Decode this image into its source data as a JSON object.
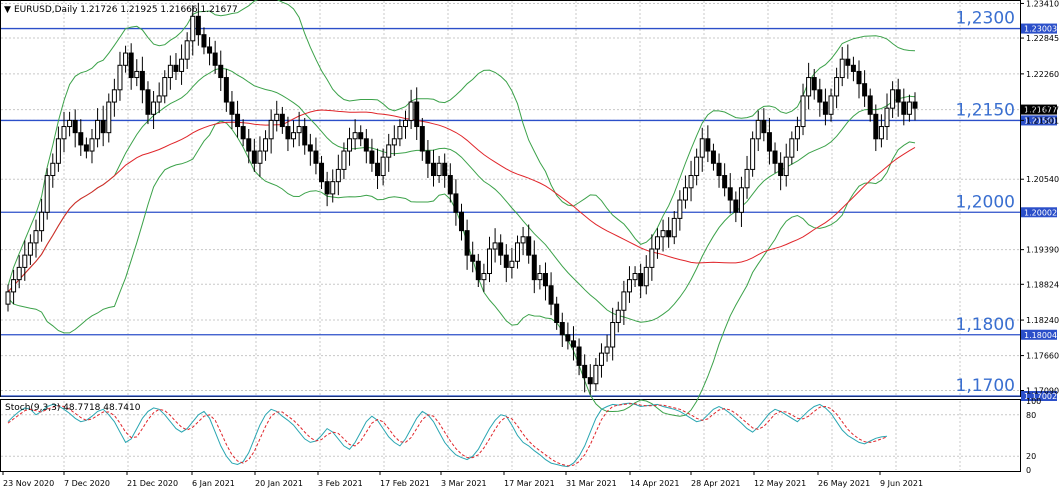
{
  "chart_data": {
    "type": "candlestick",
    "title": "EURUSD,Daily  1.21726 1.21925 1.21666 1.21677",
    "symbol": "EURUSD,Daily",
    "ohlc_header": "1.21726 1.21925 1.21666 1.21677",
    "ylim": [
      1.17,
      1.2345
    ],
    "y_ticks": [
      "1.23410",
      "1.22845",
      "1.22260",
      "1.21677",
      "1.21501",
      "1.20540",
      "1.19390",
      "1.18824",
      "1.18240",
      "1.17660",
      "1.17090"
    ],
    "x_ticks": [
      "23 Nov 2020",
      "7 Dec 2020",
      "21 Dec 2020",
      "6 Jan 2021",
      "20 Jan 2021",
      "3 Feb 2021",
      "17 Feb 2021",
      "3 Mar 2021",
      "17 Mar 2021",
      "31 Mar 2021",
      "14 Apr 2021",
      "28 Apr 2021",
      "12 May 2021",
      "26 May 2021",
      "9 Jun 2021"
    ],
    "horizontal_levels": [
      {
        "value": 1.23,
        "label": "1,2300",
        "box": "1.23003"
      },
      {
        "value": 1.215,
        "label": "1,2150",
        "box": "1.21501"
      },
      {
        "value": 1.2,
        "label": "1,2000",
        "box": "1.20002"
      },
      {
        "value": 1.18,
        "label": "1,1800",
        "box": "1.18004"
      },
      {
        "value": 1.17,
        "label": "1,1700",
        "box": "1.17002"
      }
    ],
    "current_price": "1.21677",
    "close_series": [
      1.187,
      1.189,
      1.191,
      1.193,
      1.195,
      1.197,
      1.2,
      1.206,
      1.208,
      1.212,
      1.214,
      1.215,
      1.213,
      1.211,
      1.21,
      1.212,
      1.215,
      1.213,
      1.218,
      1.22,
      1.224,
      1.226,
      1.222,
      1.223,
      1.22,
      1.216,
      1.218,
      1.219,
      1.222,
      1.224,
      1.223,
      1.225,
      1.228,
      1.232,
      1.229,
      1.227,
      1.226,
      1.224,
      1.222,
      1.218,
      1.216,
      1.214,
      1.212,
      1.21,
      1.208,
      1.21,
      1.212,
      1.215,
      1.216,
      1.214,
      1.212,
      1.213,
      1.214,
      1.211,
      1.21,
      1.208,
      1.205,
      1.203,
      1.205,
      1.207,
      1.21,
      1.212,
      1.213,
      1.212,
      1.21,
      1.208,
      1.206,
      1.209,
      1.211,
      1.212,
      1.214,
      1.215,
      1.218,
      1.214,
      1.21,
      1.208,
      1.206,
      1.208,
      1.206,
      1.203,
      1.2,
      1.197,
      1.193,
      1.192,
      1.189,
      1.19,
      1.194,
      1.195,
      1.193,
      1.191,
      1.192,
      1.195,
      1.196,
      1.193,
      1.189,
      1.19,
      1.188,
      1.185,
      1.182,
      1.18,
      1.179,
      1.178,
      1.175,
      1.173,
      1.172,
      1.175,
      1.177,
      1.178,
      1.182,
      1.184,
      1.187,
      1.189,
      1.19,
      1.188,
      1.191,
      1.194,
      1.196,
      1.197,
      1.196,
      1.199,
      1.202,
      1.204,
      1.206,
      1.209,
      1.212,
      1.21,
      1.208,
      1.206,
      1.204,
      1.202,
      1.2,
      1.204,
      1.207,
      1.212,
      1.215,
      1.213,
      1.21,
      1.208,
      1.206,
      1.209,
      1.212,
      1.214,
      1.219,
      1.222,
      1.22,
      1.218,
      1.216,
      1.219,
      1.222,
      1.225,
      1.224,
      1.223,
      1.221,
      1.219,
      1.216,
      1.212,
      1.214,
      1.217,
      1.22,
      1.218,
      1.216,
      1.218,
      1.217
    ],
    "ma_slow_label": "red moving average",
    "stochastic": {
      "title": "Stoch(9,3,3) 48.7718 48.7410",
      "y_ticks": [
        "100",
        "80",
        "20",
        "0"
      ],
      "k_series": [
        70,
        78,
        85,
        90,
        88,
        80,
        85,
        92,
        95,
        93,
        88,
        82,
        75,
        70,
        72,
        78,
        85,
        88,
        80,
        70,
        55,
        40,
        45,
        60,
        75,
        85,
        90,
        88,
        80,
        70,
        60,
        55,
        60,
        70,
        80,
        85,
        75,
        55,
        35,
        20,
        10,
        8,
        12,
        25,
        45,
        65,
        80,
        88,
        85,
        78,
        72,
        65,
        55,
        45,
        40,
        42,
        50,
        60,
        55,
        45,
        35,
        30,
        40,
        55,
        70,
        78,
        72,
        60,
        48,
        40,
        35,
        45,
        60,
        75,
        85,
        80,
        70,
        55,
        40,
        30,
        22,
        18,
        15,
        20,
        30,
        45,
        60,
        72,
        80,
        78,
        65,
        50,
        40,
        35,
        28,
        22,
        15,
        10,
        8,
        6,
        5,
        10,
        20,
        35,
        55,
        75,
        88,
        92,
        95,
        94,
        96,
        97,
        95,
        92,
        93,
        94,
        95,
        92,
        90,
        88,
        85,
        80,
        75,
        70,
        72,
        80,
        88,
        92,
        88,
        82,
        75,
        68,
        60,
        55,
        62,
        72,
        82,
        88,
        85,
        80,
        75,
        70,
        78,
        86,
        92,
        95,
        90,
        82,
        70,
        58,
        50,
        45,
        40,
        38,
        42,
        46,
        48,
        49
      ],
      "d_series": [
        68,
        74,
        80,
        86,
        88,
        86,
        84,
        88,
        91,
        93,
        92,
        88,
        82,
        76,
        72,
        74,
        79,
        84,
        84,
        79,
        68,
        55,
        47,
        48,
        60,
        73,
        83,
        88,
        86,
        79,
        70,
        62,
        58,
        62,
        70,
        78,
        80,
        72,
        55,
        37,
        22,
        13,
        10,
        15,
        27,
        45,
        63,
        78,
        84,
        84,
        78,
        72,
        64,
        55,
        47,
        42,
        44,
        51,
        55,
        53,
        45,
        37,
        35,
        42,
        55,
        68,
        73,
        70,
        60,
        49,
        41,
        40,
        47,
        60,
        73,
        80,
        78,
        68,
        55,
        42,
        31,
        23,
        18,
        18,
        22,
        32,
        45,
        59,
        71,
        77,
        74,
        64,
        52,
        42,
        34,
        28,
        22,
        16,
        11,
        8,
        6,
        7,
        12,
        22,
        37,
        55,
        73,
        85,
        92,
        94,
        95,
        96,
        96,
        94,
        93,
        93,
        94,
        94,
        92,
        90,
        88,
        84,
        80,
        75,
        72,
        74,
        81,
        87,
        89,
        87,
        82,
        75,
        68,
        61,
        59,
        63,
        72,
        81,
        85,
        84,
        80,
        75,
        74,
        78,
        85,
        91,
        92,
        89,
        81,
        70,
        59,
        51,
        45,
        41,
        40,
        42,
        45,
        48
      ]
    }
  }
}
